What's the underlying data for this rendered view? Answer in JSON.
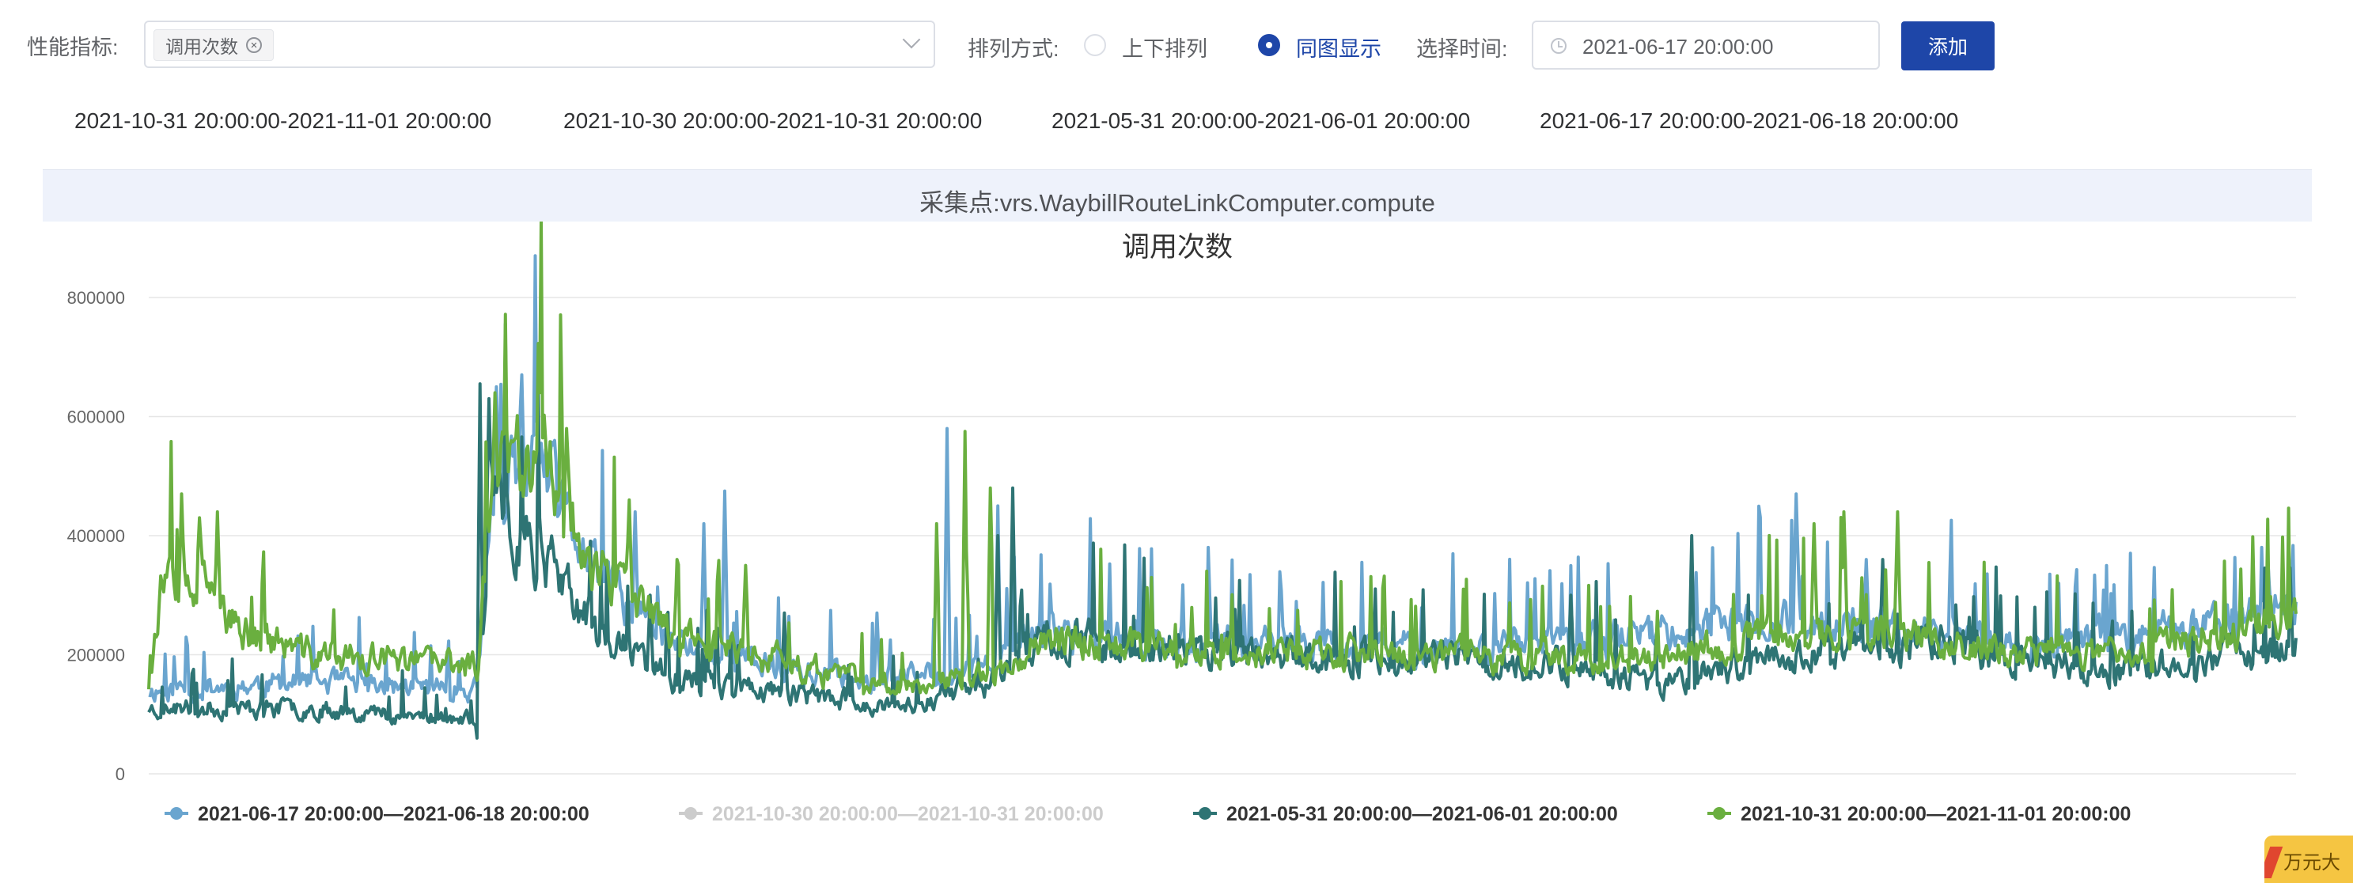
{
  "toolbar": {
    "metric_label": "性能指标:",
    "metric_tag": "调用次数",
    "layout_label": "排列方式:",
    "layout_options": [
      "上下排列",
      "同图显示"
    ],
    "layout_selected": "同图显示",
    "time_label": "选择时间:",
    "time_value": "2021-06-17 20:00:00",
    "add_label": "添加"
  },
  "ranges": [
    "2021-10-31 20:00:00-2021-11-01 20:00:00",
    "2021-10-30 20:00:00-2021-10-31 20:00:00",
    "2021-05-31 20:00:00-2021-06-01 20:00:00",
    "2021-06-17 20:00:00-2021-06-18 20:00:00"
  ],
  "banner": {
    "text": "采集点:vrs.WaybillRouteLinkComputer.compute"
  },
  "corner_badge": "万元大",
  "chart_data": {
    "type": "line",
    "title": "调用次数",
    "xlabel": "",
    "ylabel": "",
    "ylim": [
      0,
      800000
    ],
    "yticks": [
      0,
      200000,
      400000,
      600000,
      800000
    ],
    "grid": true,
    "legend_position": "bottom",
    "point_count": 1440,
    "series": [
      {
        "name": "2021-06-17 20:00:00—2021-06-18 20:00:00",
        "color": "#6aa5cf",
        "hidden": false,
        "anchors": [
          [
            0,
            140000
          ],
          [
            110,
            155000
          ],
          [
            220,
            140000
          ],
          [
            230,
            450000
          ],
          [
            260,
            530000
          ],
          [
            300,
            330000
          ],
          [
            350,
            220000
          ],
          [
            450,
            165000
          ],
          [
            500,
            160000
          ],
          [
            560,
            175000
          ],
          [
            600,
            240000
          ],
          [
            750,
            215000
          ],
          [
            950,
            215000
          ],
          [
            1010,
            240000
          ],
          [
            1100,
            255000
          ],
          [
            1200,
            235000
          ],
          [
            1250,
            215000
          ],
          [
            1320,
            225000
          ],
          [
            1400,
            260000
          ],
          [
            1439,
            285000
          ]
        ],
        "noise": 0.12,
        "seed": 11,
        "spikes": [
          [
            233,
            650000
          ],
          [
            250,
            670000
          ],
          [
            272,
            560000
          ],
          [
            326,
            440000
          ],
          [
            372,
            420000
          ],
          [
            386,
            475000
          ],
          [
            488,
            270000
          ],
          [
            535,
            580000
          ],
          [
            569,
            450000
          ],
          [
            1104,
            470000
          ],
          [
            1151,
            360000
          ],
          [
            1420,
            365000
          ]
        ]
      },
      {
        "name": "2021-10-30 20:00:00—2021-10-31 20:00:00",
        "color": "#c8c8c8",
        "hidden": true,
        "anchors": [
          [
            0,
            160000
          ],
          [
            1439,
            230000
          ]
        ],
        "noise": 0.1,
        "seed": 7,
        "spikes": []
      },
      {
        "name": "2021-05-31 20:00:00—2021-06-01 20:00:00",
        "color": "#2e7474",
        "hidden": false,
        "anchors": [
          [
            0,
            110000
          ],
          [
            110,
            110000
          ],
          [
            220,
            90000
          ],
          [
            230,
            440000
          ],
          [
            260,
            380000
          ],
          [
            300,
            240000
          ],
          [
            350,
            160000
          ],
          [
            450,
            130000
          ],
          [
            500,
            110000
          ],
          [
            560,
            150000
          ],
          [
            600,
            230000
          ],
          [
            750,
            200000
          ],
          [
            950,
            185000
          ],
          [
            1010,
            150000
          ],
          [
            1100,
            200000
          ],
          [
            1200,
            220000
          ],
          [
            1250,
            195000
          ],
          [
            1320,
            170000
          ],
          [
            1400,
            200000
          ],
          [
            1439,
            215000
          ]
        ],
        "noise": 0.13,
        "seed": 23,
        "spikes": [
          [
            220,
            60000
          ],
          [
            222,
            655000
          ],
          [
            228,
            630000
          ],
          [
            262,
            430000
          ],
          [
            336,
            300000
          ],
          [
            426,
            270000
          ],
          [
            569,
            400000
          ],
          [
            579,
            480000
          ],
          [
            953,
            300000
          ],
          [
            1034,
            400000
          ],
          [
            1162,
            360000
          ],
          [
            1280,
            200000
          ]
        ]
      },
      {
        "name": "2021-10-31 20:00:00—2021-11-01 20:00:00",
        "color": "#6aaf3f",
        "hidden": false,
        "anchors": [
          [
            0,
            150000
          ],
          [
            8,
            310000
          ],
          [
            40,
            300000
          ],
          [
            60,
            240000
          ],
          [
            110,
            200000
          ],
          [
            220,
            180000
          ],
          [
            230,
            500000
          ],
          [
            260,
            560000
          ],
          [
            300,
            340000
          ],
          [
            350,
            240000
          ],
          [
            450,
            170000
          ],
          [
            500,
            150000
          ],
          [
            560,
            160000
          ],
          [
            600,
            230000
          ],
          [
            750,
            200000
          ],
          [
            950,
            200000
          ],
          [
            1010,
            190000
          ],
          [
            1100,
            240000
          ],
          [
            1200,
            230000
          ],
          [
            1250,
            205000
          ],
          [
            1320,
            200000
          ],
          [
            1400,
            240000
          ],
          [
            1439,
            260000
          ]
        ],
        "noise": 0.12,
        "seed": 37,
        "spikes": [
          [
            12,
            330000
          ],
          [
            22,
            470000
          ],
          [
            34,
            430000
          ],
          [
            46,
            440000
          ],
          [
            232,
            640000
          ],
          [
            262,
            640000
          ],
          [
            280,
            580000
          ],
          [
            322,
            460000
          ],
          [
            354,
            360000
          ],
          [
            400,
            350000
          ],
          [
            528,
            420000
          ],
          [
            547,
            575000
          ],
          [
            564,
            480000
          ],
          [
            1116,
            420000
          ],
          [
            1136,
            440000
          ],
          [
            1172,
            440000
          ]
        ]
      }
    ]
  }
}
